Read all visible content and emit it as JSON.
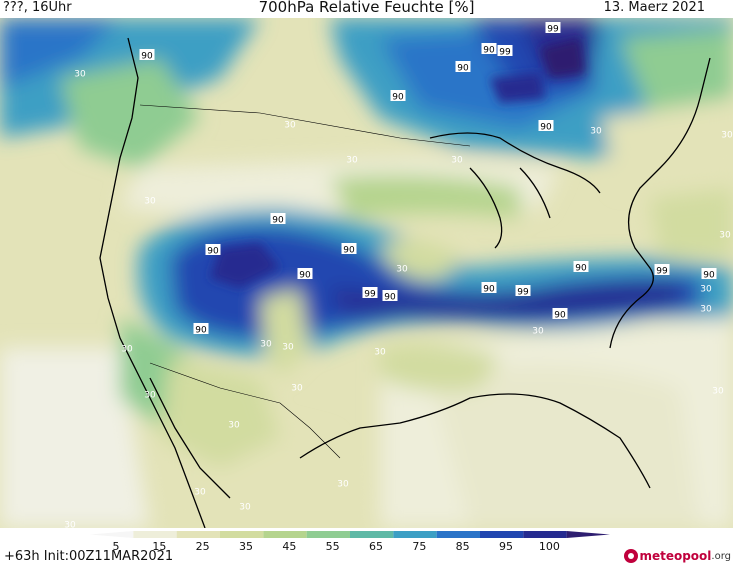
{
  "header": {
    "left": "???, 16Uhr",
    "title": "700hPa Relative Feuchte [%]",
    "date": "13. Maerz 2021"
  },
  "footer": {
    "run": "+63h  Init:00Z11MAR2021",
    "logo_name": "meteopool",
    "logo_suffix": ".org"
  },
  "colorbar": {
    "ticks": [
      "5",
      "15",
      "25",
      "35",
      "45",
      "55",
      "65",
      "75",
      "85",
      "95",
      "100"
    ],
    "colors": [
      "#f6f6f6",
      "#eeeeda",
      "#e3e3b8",
      "#d2dca0",
      "#b5d48e",
      "#8fcc92",
      "#5fb9a6",
      "#3c9fc4",
      "#2a74c8",
      "#2146b0",
      "#252b90",
      "#2e1e70"
    ]
  },
  "map_labels": [
    "90",
    "99",
    "90",
    "99",
    "30",
    "90",
    "90",
    "90",
    "30",
    "30",
    "30",
    "30",
    "30",
    "90",
    "90",
    "90",
    "30",
    "30",
    "90",
    "99",
    "90",
    "90",
    "99",
    "90",
    "90",
    "90",
    "30",
    "30",
    "30",
    "30",
    "30",
    "30",
    "30",
    "30",
    "30",
    "30",
    "30",
    "30",
    "99",
    "90",
    "30",
    "30",
    "30",
    "30"
  ]
}
